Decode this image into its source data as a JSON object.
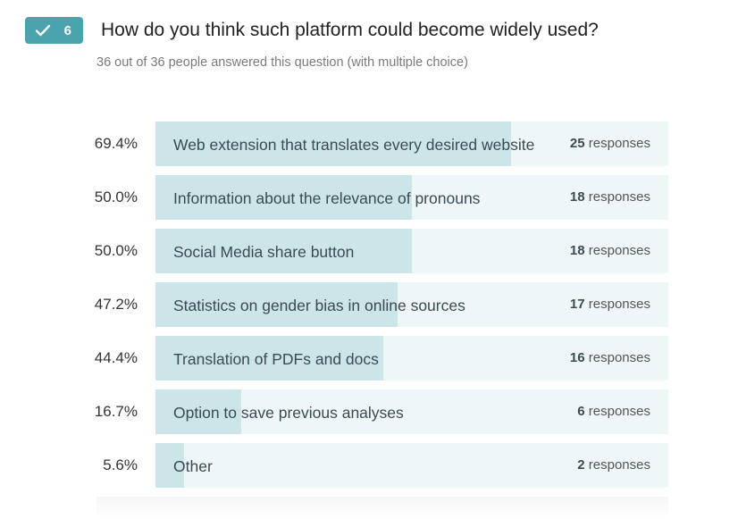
{
  "header": {
    "badge_number": "6",
    "title": "How do you think such platform could become widely used?",
    "subtitle": "36 out of 36 people answered this question (with multiple choice)"
  },
  "icons": {
    "badge": "checkmark-icon"
  },
  "colors": {
    "badge": "#4aa3ad",
    "bar_fill": "#cbe5e9",
    "bar_track": "#eef6f8"
  },
  "chart_data": {
    "type": "bar",
    "orientation": "horizontal",
    "total_respondents": 36,
    "unit_label": "responses",
    "categories": [
      "Web extension that translates every desired website",
      "Information about the relevance of pronouns",
      "Social Media share button",
      "Statistics on gender bias in online sources",
      "Translation of PDFs and docs",
      "Option to save previous analyses",
      "Other"
    ],
    "percent_labels": [
      "69.4%",
      "50.0%",
      "50.0%",
      "47.2%",
      "44.4%",
      "16.7%",
      "5.6%"
    ],
    "percentages": [
      69.4,
      50.0,
      50.0,
      47.2,
      44.4,
      16.7,
      5.6
    ],
    "values": [
      25,
      18,
      18,
      17,
      16,
      6,
      2
    ]
  }
}
